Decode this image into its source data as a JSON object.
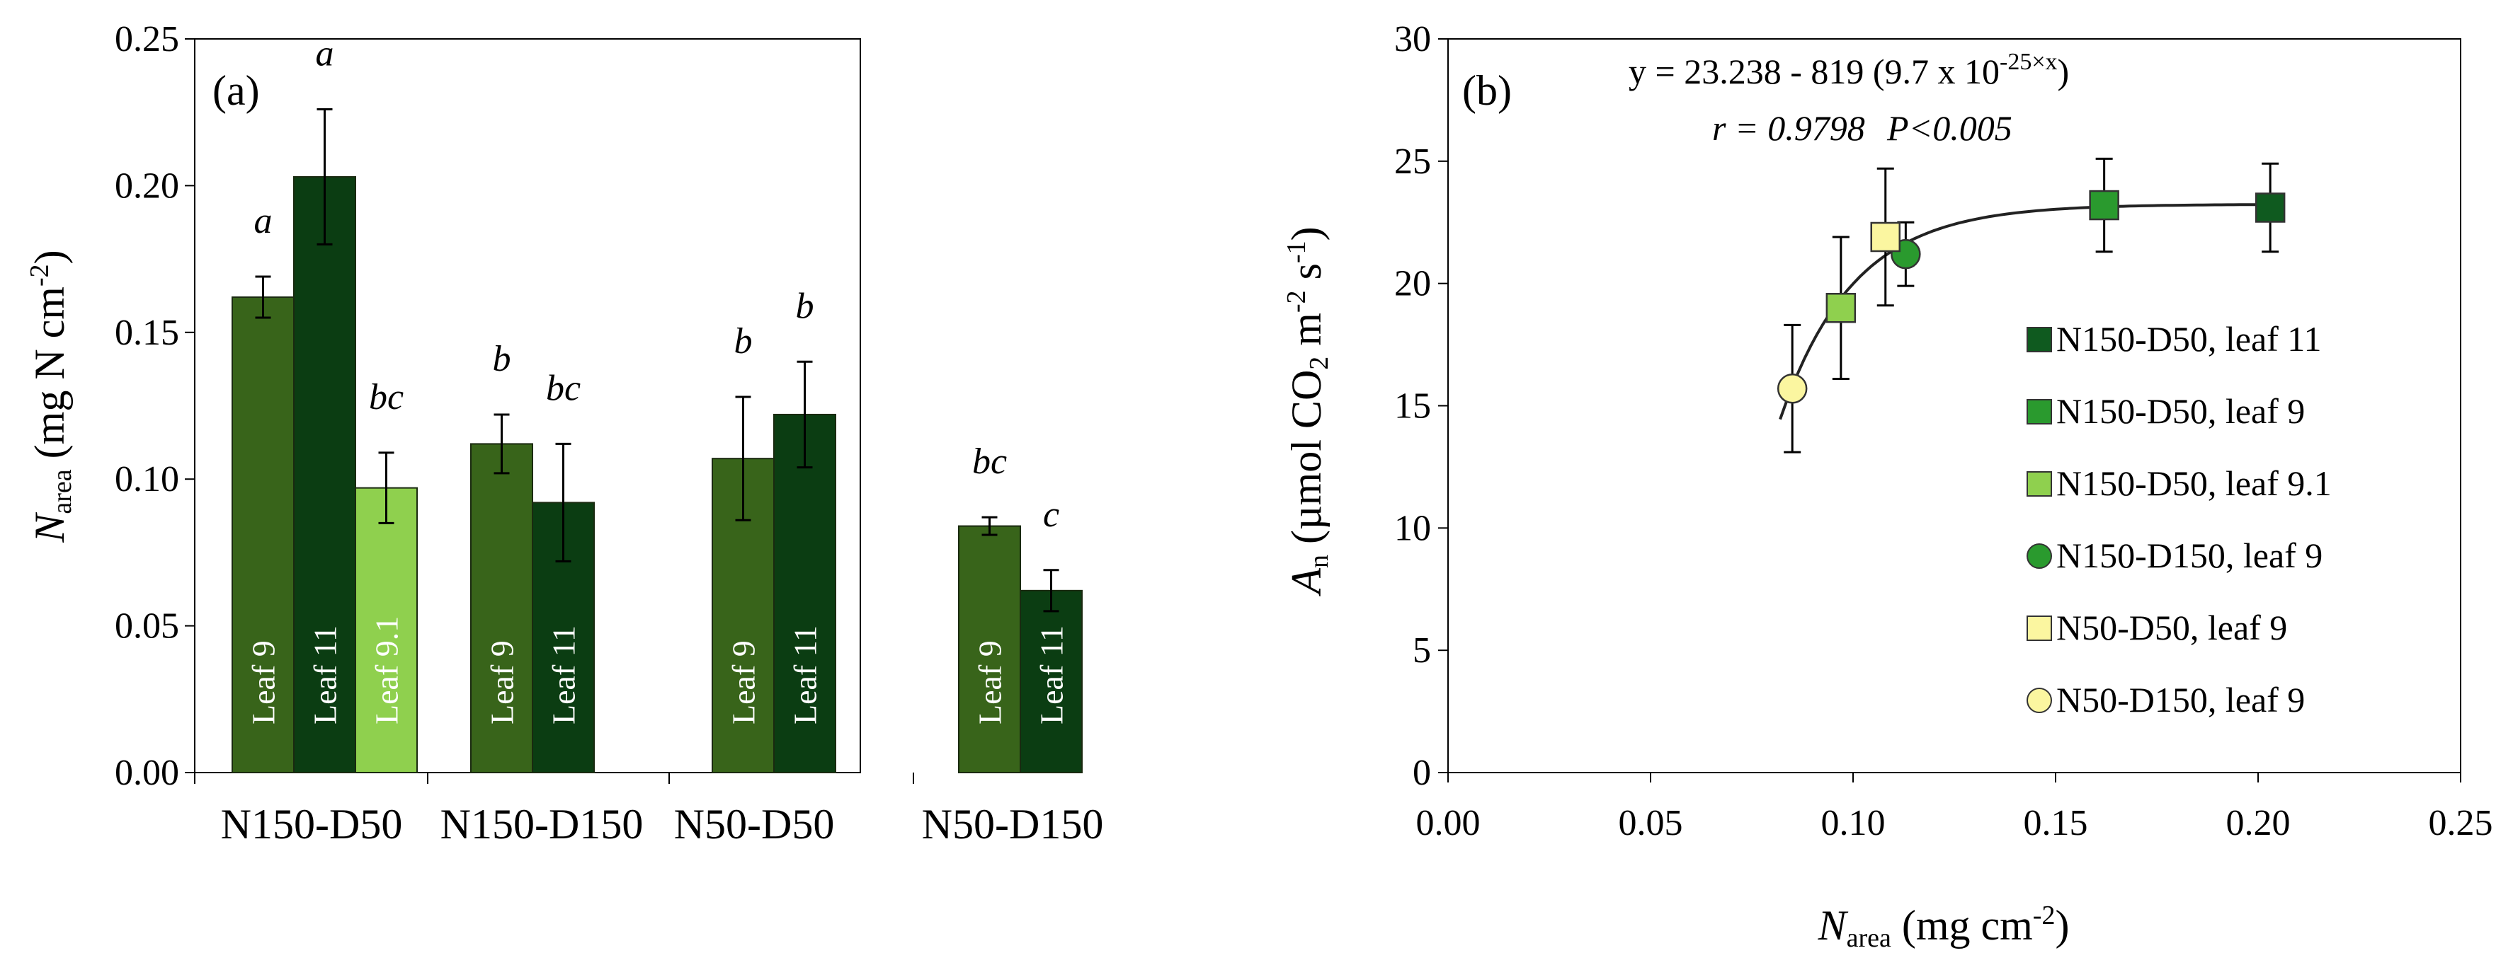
{
  "chart_data": [
    {
      "panel": "(a)",
      "type": "bar",
      "ylabel": {
        "italic": "N",
        "sub": "area",
        "rest": "  (mg N cm",
        "sup": "-2",
        "end": ")"
      },
      "ylim": [
        0,
        0.25
      ],
      "yticks": [
        "0.00",
        "0.05",
        "0.10",
        "0.15",
        "0.20",
        "0.25"
      ],
      "groups": [
        {
          "label": "N150-D50",
          "bars": [
            {
              "name": "Leaf 9",
              "value": 0.162,
              "err": 0.007,
              "sig": "a",
              "color": "#38641a"
            },
            {
              "name": "Leaf 11",
              "value": 0.203,
              "err": 0.023,
              "sig": "a",
              "color": "#0b3d12"
            },
            {
              "name": "Leaf 9.1",
              "value": 0.097,
              "err": 0.012,
              "sig": "bc",
              "color": "#8fd04e"
            }
          ]
        },
        {
          "label": "N150-D150",
          "bars": [
            {
              "name": "Leaf 9",
              "value": 0.112,
              "err": 0.01,
              "sig": "b",
              "color": "#38641a"
            },
            {
              "name": "Leaf 11",
              "value": 0.092,
              "err": 0.02,
              "sig": "bc",
              "color": "#0b3d12"
            }
          ]
        },
        {
          "label": "N50-D50",
          "bars": [
            {
              "name": "Leaf 9",
              "value": 0.107,
              "err": 0.021,
              "sig": "b",
              "color": "#38641a"
            },
            {
              "name": "Leaf 11",
              "value": 0.122,
              "err": 0.018,
              "sig": "b",
              "color": "#0b3d12"
            }
          ]
        },
        {
          "label": "N50-D150",
          "bars": [
            {
              "name": "Leaf 9",
              "value": 0.084,
              "err": 0.003,
              "sig": "bc",
              "color": "#38641a"
            },
            {
              "name": "Leaf 11",
              "value": 0.062,
              "err": 0.007,
              "sig": "c",
              "color": "#0b3d12"
            }
          ]
        }
      ]
    },
    {
      "panel": "(b)",
      "type": "scatter",
      "xlabel": {
        "italic": "N",
        "sub": "area",
        "rest": " (mg cm",
        "sup": "-2",
        "end": ")"
      },
      "ylabel": {
        "italic": "A",
        "sub": "n",
        "rest": " (µmol CO",
        "sub2": "2",
        "rest2": " m",
        "sup": "-2",
        "rest3": " s",
        "sup2": "-1",
        "end": ")"
      },
      "xlim": [
        0,
        0.25
      ],
      "ylim": [
        0,
        30
      ],
      "xticks": [
        "0.00",
        "0.05",
        "0.10",
        "0.15",
        "0.20",
        "0.25"
      ],
      "yticks": [
        "0",
        "5",
        "10",
        "15",
        "20",
        "25",
        "30"
      ],
      "equation": {
        "main": "y = 23.238 - 819 (9.7 x 10",
        "sup": "-25×x",
        "end": ")"
      },
      "stats": {
        "r": "r = 0.9798",
        "p": "P<0.005"
      },
      "fit": {
        "a": 23.238,
        "b": 819,
        "base": 9.7e-25,
        "x_range": [
          0.082,
          0.203
        ]
      },
      "series": [
        {
          "name": "N150-D50, leaf 11",
          "marker": "square",
          "color": "#0f5a1f",
          "x": 0.203,
          "y": 23.1,
          "err": 1.8
        },
        {
          "name": "N150-D50, leaf 9",
          "marker": "square",
          "color": "#2a9a2e",
          "x": 0.162,
          "y": 23.2,
          "err": 1.9
        },
        {
          "name": "N150-D50, leaf 9.1",
          "marker": "square",
          "color": "#8fd04e",
          "x": 0.097,
          "y": 19.0,
          "err": 2.9
        },
        {
          "name": "N150-D150, leaf 9",
          "marker": "circle",
          "color": "#2a9a2e",
          "x": 0.113,
          "y": 21.2,
          "err": 1.3
        },
        {
          "name": "N50-D50, leaf 9",
          "marker": "square",
          "color": "#fbf6a0",
          "x": 0.108,
          "y": 21.9,
          "err": 2.8
        },
        {
          "name": "N50-D150, leaf 9",
          "marker": "circle",
          "color": "#fbf6a0",
          "x": 0.085,
          "y": 15.7,
          "err": 2.6
        }
      ]
    }
  ]
}
